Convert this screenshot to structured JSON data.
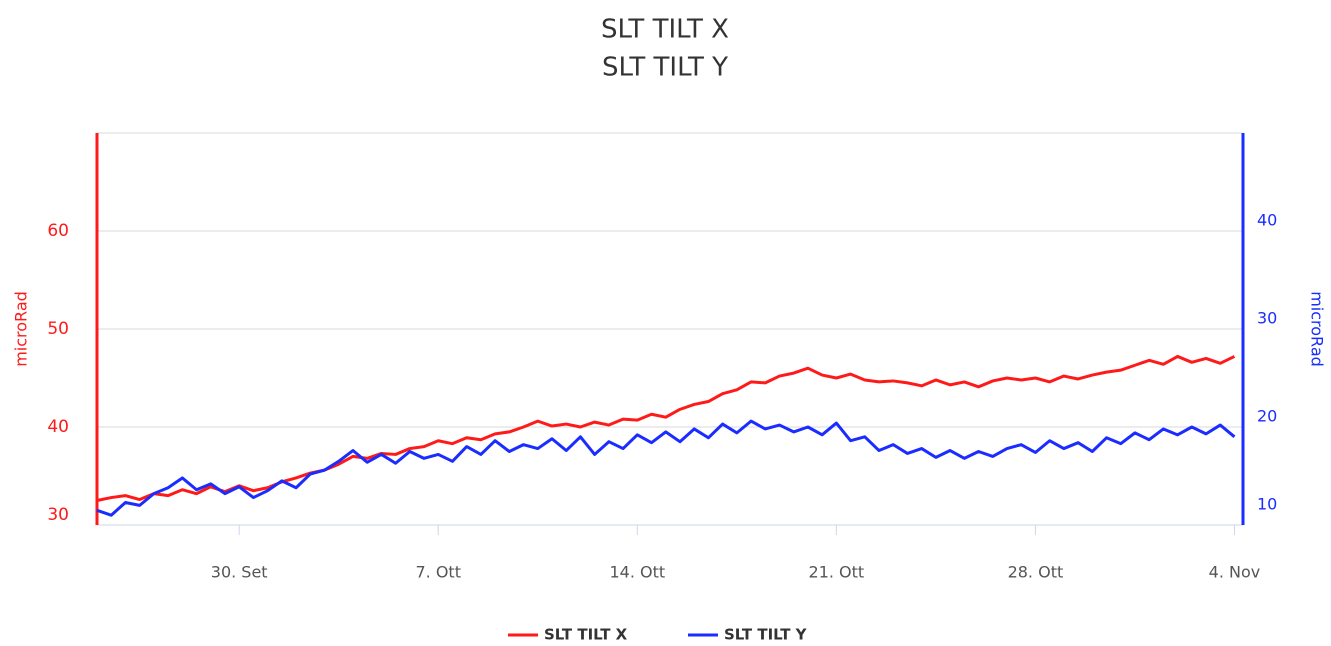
{
  "chart_data": {
    "type": "line",
    "title": "SLT TILT X",
    "subtitle": "SLT TILT Y",
    "y_label": "microRad",
    "y2_label": "microRad",
    "xlim": [
      -5,
      35.3
    ],
    "xticks": [
      {
        "value": 0,
        "label": "30. Set"
      },
      {
        "value": 7,
        "label": "7. Ott"
      },
      {
        "value": 14,
        "label": "14. Ott"
      },
      {
        "value": 21,
        "label": "21. Ott"
      },
      {
        "value": 28,
        "label": "28. Ott"
      },
      {
        "value": 35,
        "label": "4. Nov"
      }
    ],
    "ylim": [
      30,
      70
    ],
    "yticks": [
      30,
      40,
      50,
      60
    ],
    "y2lim": [
      10,
      50
    ],
    "y2ticks": [
      10,
      20,
      30,
      40
    ],
    "grid": true,
    "legend": "bottom",
    "x": [
      -5,
      -4.5,
      -4,
      -3.5,
      -3,
      -2.5,
      -2,
      -1.5,
      -1,
      -0.5,
      0,
      0.5,
      1,
      1.5,
      2,
      2.5,
      3,
      3.5,
      4,
      4.5,
      5,
      5.5,
      6,
      6.5,
      7,
      7.5,
      8,
      8.5,
      9,
      9.5,
      10,
      10.5,
      11,
      11.5,
      12,
      12.5,
      13,
      13.5,
      14,
      14.5,
      15,
      15.5,
      16,
      16.5,
      17,
      17.5,
      18,
      18.5,
      19,
      19.5,
      20,
      20.5,
      21,
      21.5,
      22,
      22.5,
      23,
      23.5,
      24,
      24.5,
      25,
      25.5,
      26,
      26.5,
      27,
      27.5,
      28,
      28.5,
      29,
      29.5,
      30,
      30.5,
      31,
      31.5,
      32,
      32.5,
      33,
      33.5,
      34,
      34.5,
      35
    ],
    "series": [
      {
        "name": "SLT TILT X",
        "color": "#ff1a1a",
        "axis": "y",
        "values": [
          32.5,
          32.8,
          33.0,
          32.6,
          33.2,
          33.0,
          33.6,
          33.2,
          33.9,
          33.4,
          34.0,
          33.5,
          33.8,
          34.4,
          34.8,
          35.3,
          35.6,
          36.2,
          37.0,
          36.8,
          37.3,
          37.2,
          37.8,
          38.0,
          38.6,
          38.3,
          38.9,
          38.7,
          39.3,
          39.5,
          40.0,
          40.6,
          40.1,
          40.3,
          40.0,
          40.5,
          40.2,
          40.8,
          40.7,
          41.3,
          41.0,
          41.8,
          42.3,
          42.6,
          43.4,
          43.8,
          44.6,
          44.5,
          45.2,
          45.5,
          46.0,
          45.3,
          45.0,
          45.4,
          44.8,
          44.6,
          44.7,
          44.5,
          44.2,
          44.8,
          44.3,
          44.6,
          44.1,
          44.7,
          45.0,
          44.8,
          45.0,
          44.6,
          45.2,
          44.9,
          45.3,
          45.6,
          45.8,
          46.3,
          46.8,
          46.4,
          47.2,
          46.6,
          47.0,
          46.5,
          47.2
        ]
      },
      {
        "name": "SLT TILT Y",
        "color": "#1a2cff",
        "axis": "y2",
        "values": [
          11.5,
          11.0,
          12.3,
          12.0,
          13.2,
          13.8,
          14.8,
          13.6,
          14.2,
          13.2,
          13.9,
          12.8,
          13.5,
          14.5,
          13.8,
          15.2,
          15.6,
          16.5,
          17.6,
          16.4,
          17.2,
          16.3,
          17.5,
          16.8,
          17.2,
          16.5,
          18.0,
          17.2,
          18.6,
          17.5,
          18.2,
          17.8,
          18.8,
          17.6,
          19.0,
          17.2,
          18.5,
          17.8,
          19.2,
          18.4,
          19.5,
          18.5,
          19.8,
          18.9,
          20.3,
          19.4,
          20.6,
          19.8,
          20.2,
          19.5,
          20.0,
          19.2,
          20.4,
          18.6,
          19.0,
          17.6,
          18.2,
          17.3,
          17.8,
          16.9,
          17.6,
          16.8,
          17.5,
          17.0,
          17.8,
          18.2,
          17.4,
          18.6,
          17.8,
          18.4,
          17.5,
          18.9,
          18.3,
          19.4,
          18.7,
          19.8,
          19.2,
          20.0,
          19.3,
          20.2,
          19.0
        ]
      }
    ]
  }
}
